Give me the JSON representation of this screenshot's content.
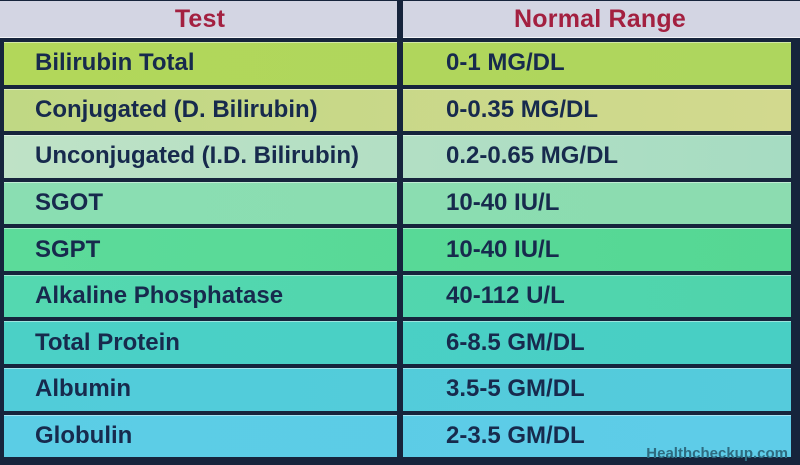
{
  "table": {
    "headers": {
      "test": "Test",
      "range": "Normal Range"
    },
    "rows": [
      {
        "test": "Bilirubin Total",
        "range": "0-1 MG/DL",
        "color": "#b2d75a",
        "color2": "#aed65e"
      },
      {
        "test": "Conjugated (D. Bilirubin)",
        "range": "0-0.35 MG/DL",
        "color": "#c0d884",
        "color2": "#d2d98e"
      },
      {
        "test": "Unconjugated (I.D. Bilirubin)",
        "range": "0.2-0.65 MG/DL",
        "color": "#bfe2c6",
        "color2": "#a6dcc2"
      },
      {
        "test": "SGOT",
        "range": "10-40 IU/L",
        "color": "#8adeb2",
        "color2": "#8cdcb0"
      },
      {
        "test": "SGPT",
        "range": "10-40 IU/L",
        "color": "#5cdb9a",
        "color2": "#55d794"
      },
      {
        "test": "Alkaline Phosphatase",
        "range": "40-112 U/L",
        "color": "#54d8b0",
        "color2": "#4fd4ac"
      },
      {
        "test": "Total Protein",
        "range": "6-8.5 GM/DL",
        "color": "#4bd0c6",
        "color2": "#48cfc4"
      },
      {
        "test": "Albumin",
        "range": "3.5-5 GM/DL",
        "color": "#51ccd9",
        "color2": "#55cbdc"
      },
      {
        "test": "Globulin",
        "range": "2-3.5 GM/DL",
        "color": "#5bcde5",
        "color2": "#5ecce8"
      }
    ]
  },
  "watermark": {
    "text": "Healthcheckup.com"
  },
  "colors": {
    "border_navy": "#16243c",
    "header_bg": "#d3d5e3",
    "header_text": "#a32040",
    "row_text": "#172a4d",
    "watermark_text": "#2d6b80"
  },
  "chart_data": {
    "type": "table",
    "title": "Liver Function Test Normal Ranges",
    "columns": [
      "Test",
      "Normal Range"
    ],
    "rows": [
      [
        "Bilirubin Total",
        "0-1 MG/DL"
      ],
      [
        "Conjugated (D. Bilirubin)",
        "0-0.35 MG/DL"
      ],
      [
        "Unconjugated (I.D. Bilirubin)",
        "0.2-0.65 MG/DL"
      ],
      [
        "SGOT",
        "10-40 IU/L"
      ],
      [
        "SGPT",
        "10-40 IU/L"
      ],
      [
        "Alkaline Phosphatase",
        "40-112 U/L"
      ],
      [
        "Total Protein",
        "6-8.5 GM/DL"
      ],
      [
        "Albumin",
        "3.5-5 GM/DL"
      ],
      [
        "Globulin",
        "2-3.5 GM/DL"
      ]
    ]
  }
}
